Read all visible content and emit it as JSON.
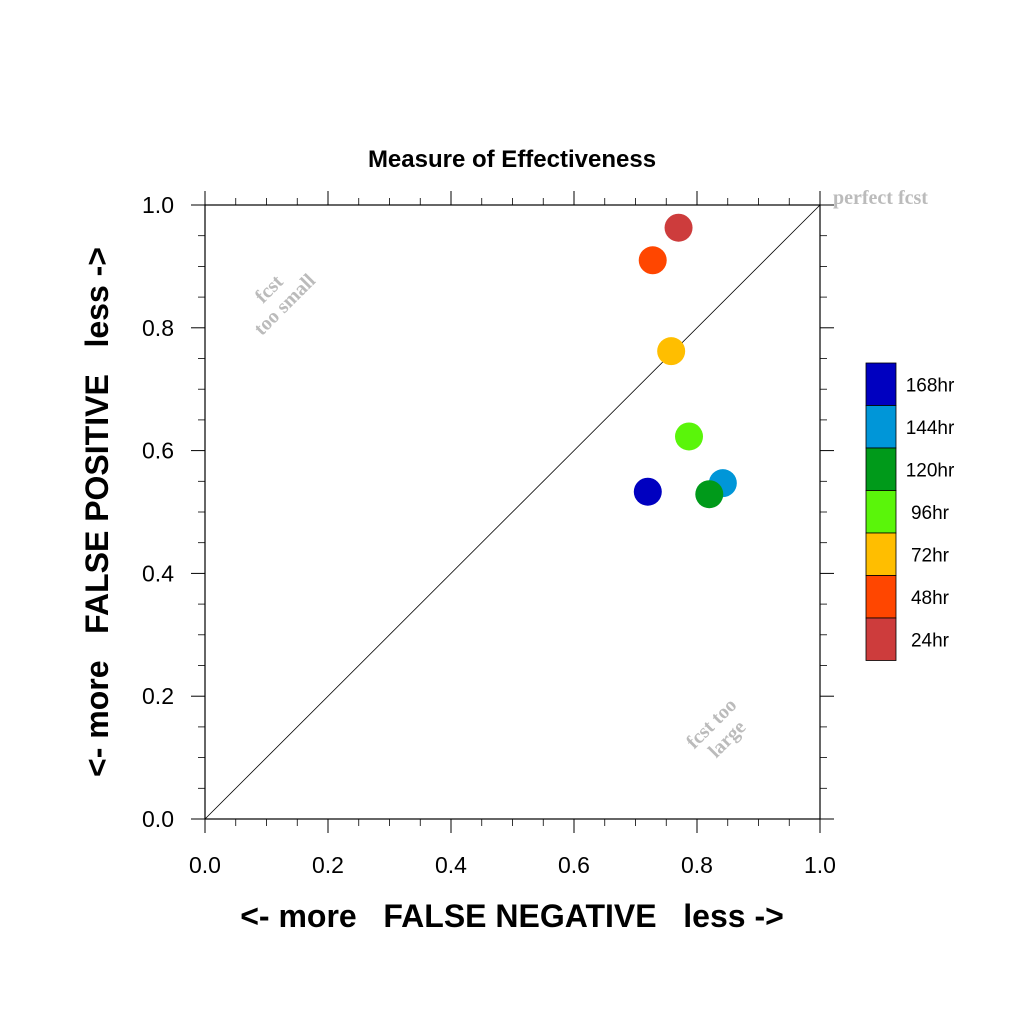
{
  "chart_data": {
    "type": "scatter",
    "title": "Measure of Effectiveness",
    "xlabel": "<- more   FALSE NEGATIVE   less ->",
    "ylabel": "<- more   FALSE POSITIVE   less ->",
    "xlim": [
      0.0,
      1.0
    ],
    "ylim": [
      0.0,
      1.0
    ],
    "x_ticks": [
      "0.0",
      "0.2",
      "0.4",
      "0.6",
      "0.8",
      "1.0"
    ],
    "y_ticks": [
      "0.0",
      "0.2",
      "0.4",
      "0.6",
      "0.8",
      "1.0"
    ],
    "grid": false,
    "reference_line": "diagonal y = x",
    "annotations": {
      "perfect": "perfect fcst",
      "small_line1": "fcst",
      "small_line2": "too small",
      "large_line1": "fcst too",
      "large_line2": "large"
    },
    "legend_position": "right",
    "series": [
      {
        "name": "168hr",
        "color": "#0000c0",
        "x": 0.72,
        "y": 0.533
      },
      {
        "name": "144hr",
        "color": "#0096d8",
        "x": 0.842,
        "y": 0.547
      },
      {
        "name": "120hr",
        "color": "#009a1a",
        "x": 0.82,
        "y": 0.529
      },
      {
        "name": "96hr",
        "color": "#5af50a",
        "x": 0.787,
        "y": 0.623
      },
      {
        "name": "72hr",
        "color": "#ffbe00",
        "x": 0.758,
        "y": 0.762
      },
      {
        "name": "48hr",
        "color": "#ff4600",
        "x": 0.728,
        "y": 0.91
      },
      {
        "name": "24hr",
        "color": "#cd3c3c",
        "x": 0.77,
        "y": 0.963
      }
    ]
  }
}
